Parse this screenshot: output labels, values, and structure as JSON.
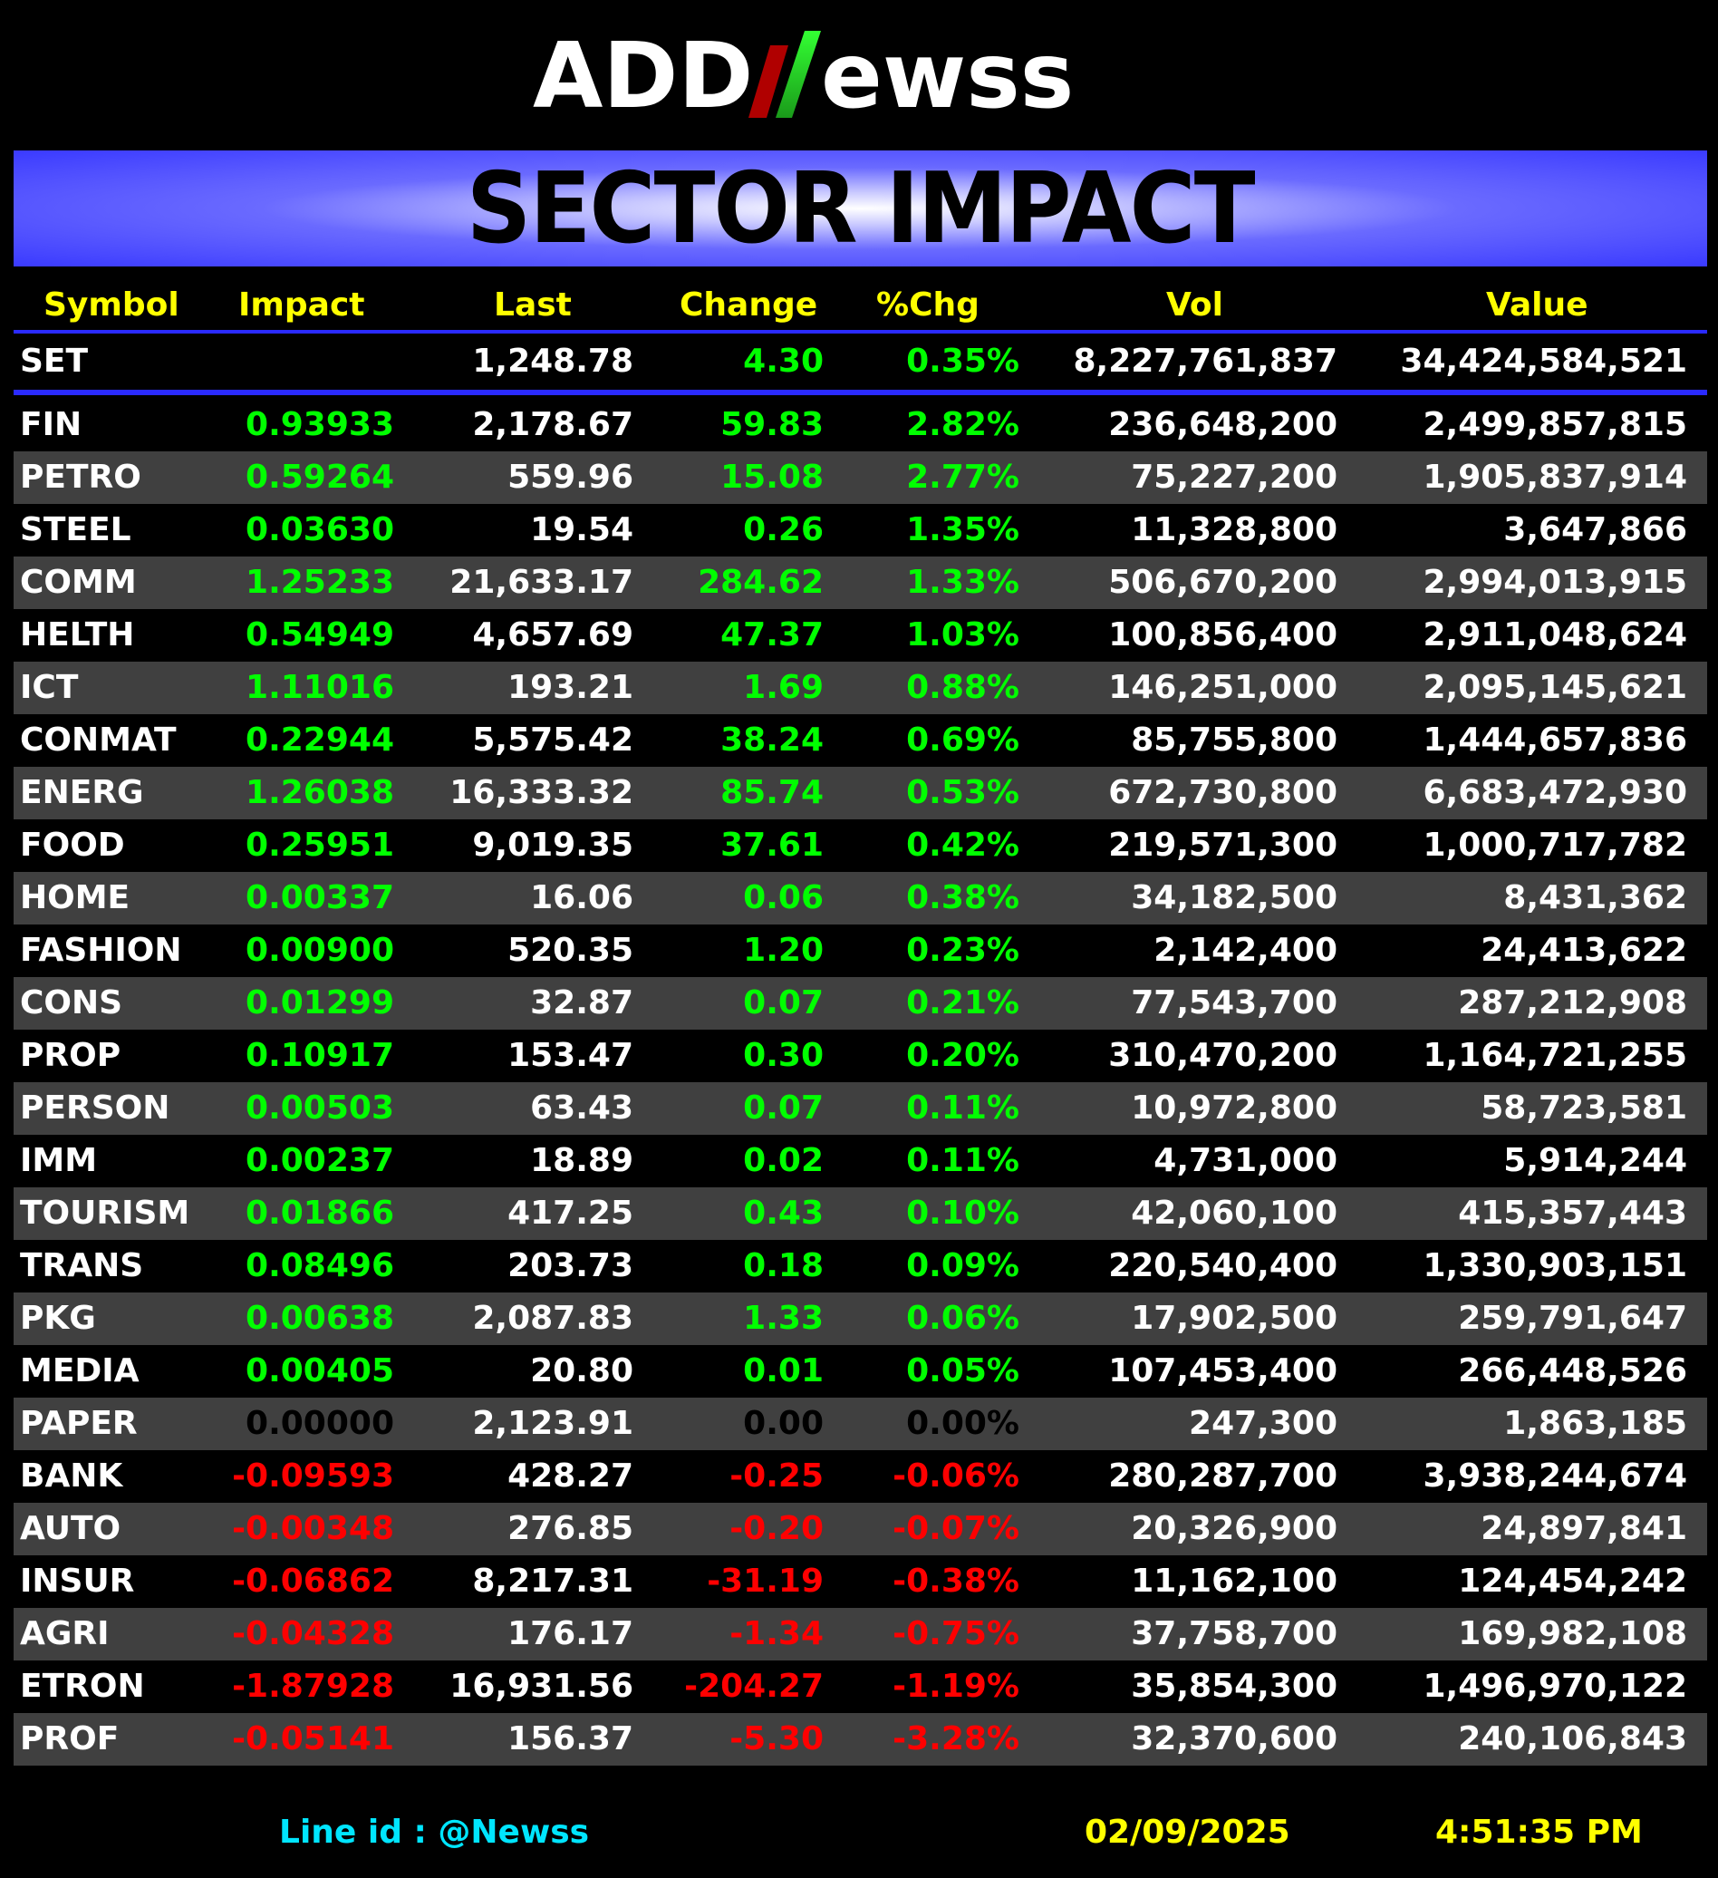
{
  "logo": {
    "left": "ADD",
    "right": "ewss",
    "mark": "N"
  },
  "banner": {
    "title": "SECTOR IMPACT"
  },
  "headers": {
    "symbol": "Symbol",
    "impact": "Impact",
    "last": "Last",
    "change": "Change",
    "pct": "%Chg",
    "vol": "Vol",
    "value": "Value"
  },
  "set": {
    "symbol": "SET",
    "impact": "",
    "last": "1,248.78",
    "change": "4.30",
    "pct": "0.35%",
    "vol": "8,227,761,837",
    "value": "34,424,584,521",
    "dir": "pos"
  },
  "rows": [
    {
      "symbol": "FIN",
      "impact": "0.93933",
      "last": "2,178.67",
      "change": "59.83",
      "pct": "2.82%",
      "vol": "236,648,200",
      "value": "2,499,857,815",
      "dir": "pos"
    },
    {
      "symbol": "PETRO",
      "impact": "0.59264",
      "last": "559.96",
      "change": "15.08",
      "pct": "2.77%",
      "vol": "75,227,200",
      "value": "1,905,837,914",
      "dir": "pos"
    },
    {
      "symbol": "STEEL",
      "impact": "0.03630",
      "last": "19.54",
      "change": "0.26",
      "pct": "1.35%",
      "vol": "11,328,800",
      "value": "3,647,866",
      "dir": "pos"
    },
    {
      "symbol": "COMM",
      "impact": "1.25233",
      "last": "21,633.17",
      "change": "284.62",
      "pct": "1.33%",
      "vol": "506,670,200",
      "value": "2,994,013,915",
      "dir": "pos"
    },
    {
      "symbol": "HELTH",
      "impact": "0.54949",
      "last": "4,657.69",
      "change": "47.37",
      "pct": "1.03%",
      "vol": "100,856,400",
      "value": "2,911,048,624",
      "dir": "pos"
    },
    {
      "symbol": "ICT",
      "impact": "1.11016",
      "last": "193.21",
      "change": "1.69",
      "pct": "0.88%",
      "vol": "146,251,000",
      "value": "2,095,145,621",
      "dir": "pos"
    },
    {
      "symbol": "CONMAT",
      "impact": "0.22944",
      "last": "5,575.42",
      "change": "38.24",
      "pct": "0.69%",
      "vol": "85,755,800",
      "value": "1,444,657,836",
      "dir": "pos"
    },
    {
      "symbol": "ENERG",
      "impact": "1.26038",
      "last": "16,333.32",
      "change": "85.74",
      "pct": "0.53%",
      "vol": "672,730,800",
      "value": "6,683,472,930",
      "dir": "pos"
    },
    {
      "symbol": "FOOD",
      "impact": "0.25951",
      "last": "9,019.35",
      "change": "37.61",
      "pct": "0.42%",
      "vol": "219,571,300",
      "value": "1,000,717,782",
      "dir": "pos"
    },
    {
      "symbol": "HOME",
      "impact": "0.00337",
      "last": "16.06",
      "change": "0.06",
      "pct": "0.38%",
      "vol": "34,182,500",
      "value": "8,431,362",
      "dir": "pos"
    },
    {
      "symbol": "FASHION",
      "impact": "0.00900",
      "last": "520.35",
      "change": "1.20",
      "pct": "0.23%",
      "vol": "2,142,400",
      "value": "24,413,622",
      "dir": "pos"
    },
    {
      "symbol": "CONS",
      "impact": "0.01299",
      "last": "32.87",
      "change": "0.07",
      "pct": "0.21%",
      "vol": "77,543,700",
      "value": "287,212,908",
      "dir": "pos"
    },
    {
      "symbol": "PROP",
      "impact": "0.10917",
      "last": "153.47",
      "change": "0.30",
      "pct": "0.20%",
      "vol": "310,470,200",
      "value": "1,164,721,255",
      "dir": "pos"
    },
    {
      "symbol": "PERSON",
      "impact": "0.00503",
      "last": "63.43",
      "change": "0.07",
      "pct": "0.11%",
      "vol": "10,972,800",
      "value": "58,723,581",
      "dir": "pos"
    },
    {
      "symbol": "IMM",
      "impact": "0.00237",
      "last": "18.89",
      "change": "0.02",
      "pct": "0.11%",
      "vol": "4,731,000",
      "value": "5,914,244",
      "dir": "pos"
    },
    {
      "symbol": "TOURISM",
      "impact": "0.01866",
      "last": "417.25",
      "change": "0.43",
      "pct": "0.10%",
      "vol": "42,060,100",
      "value": "415,357,443",
      "dir": "pos"
    },
    {
      "symbol": "TRANS",
      "impact": "0.08496",
      "last": "203.73",
      "change": "0.18",
      "pct": "0.09%",
      "vol": "220,540,400",
      "value": "1,330,903,151",
      "dir": "pos"
    },
    {
      "symbol": "PKG",
      "impact": "0.00638",
      "last": "2,087.83",
      "change": "1.33",
      "pct": "0.06%",
      "vol": "17,902,500",
      "value": "259,791,647",
      "dir": "pos"
    },
    {
      "symbol": "MEDIA",
      "impact": "0.00405",
      "last": "20.80",
      "change": "0.01",
      "pct": "0.05%",
      "vol": "107,453,400",
      "value": "266,448,526",
      "dir": "pos"
    },
    {
      "symbol": "PAPER",
      "impact": "0.00000",
      "last": "2,123.91",
      "change": "0.00",
      "pct": "0.00%",
      "vol": "247,300",
      "value": "1,863,185",
      "dir": "zero"
    },
    {
      "symbol": "BANK",
      "impact": "-0.09593",
      "last": "428.27",
      "change": "-0.25",
      "pct": "-0.06%",
      "vol": "280,287,700",
      "value": "3,938,244,674",
      "dir": "neg"
    },
    {
      "symbol": "AUTO",
      "impact": "-0.00348",
      "last": "276.85",
      "change": "-0.20",
      "pct": "-0.07%",
      "vol": "20,326,900",
      "value": "24,897,841",
      "dir": "neg"
    },
    {
      "symbol": "INSUR",
      "impact": "-0.06862",
      "last": "8,217.31",
      "change": "-31.19",
      "pct": "-0.38%",
      "vol": "11,162,100",
      "value": "124,454,242",
      "dir": "neg"
    },
    {
      "symbol": "AGRI",
      "impact": "-0.04328",
      "last": "176.17",
      "change": "-1.34",
      "pct": "-0.75%",
      "vol": "37,758,700",
      "value": "169,982,108",
      "dir": "neg"
    },
    {
      "symbol": "ETRON",
      "impact": "-1.87928",
      "last": "16,931.56",
      "change": "-204.27",
      "pct": "-1.19%",
      "vol": "35,854,300",
      "value": "1,496,970,122",
      "dir": "neg"
    },
    {
      "symbol": "PROF",
      "impact": "-0.05141",
      "last": "156.37",
      "change": "-5.30",
      "pct": "-3.28%",
      "vol": "32,370,600",
      "value": "240,106,843",
      "dir": "neg"
    }
  ],
  "footer": {
    "line_id": "Line id  : @Newss",
    "date": "02/09/2025",
    "time": "4:51:35 PM"
  },
  "colors": {
    "positive": "#00ff00",
    "negative": "#ff0000",
    "zero": "#000000",
    "header": "#ffff00",
    "accent": "#2a2aff",
    "footer_line": "#00e5ff"
  }
}
